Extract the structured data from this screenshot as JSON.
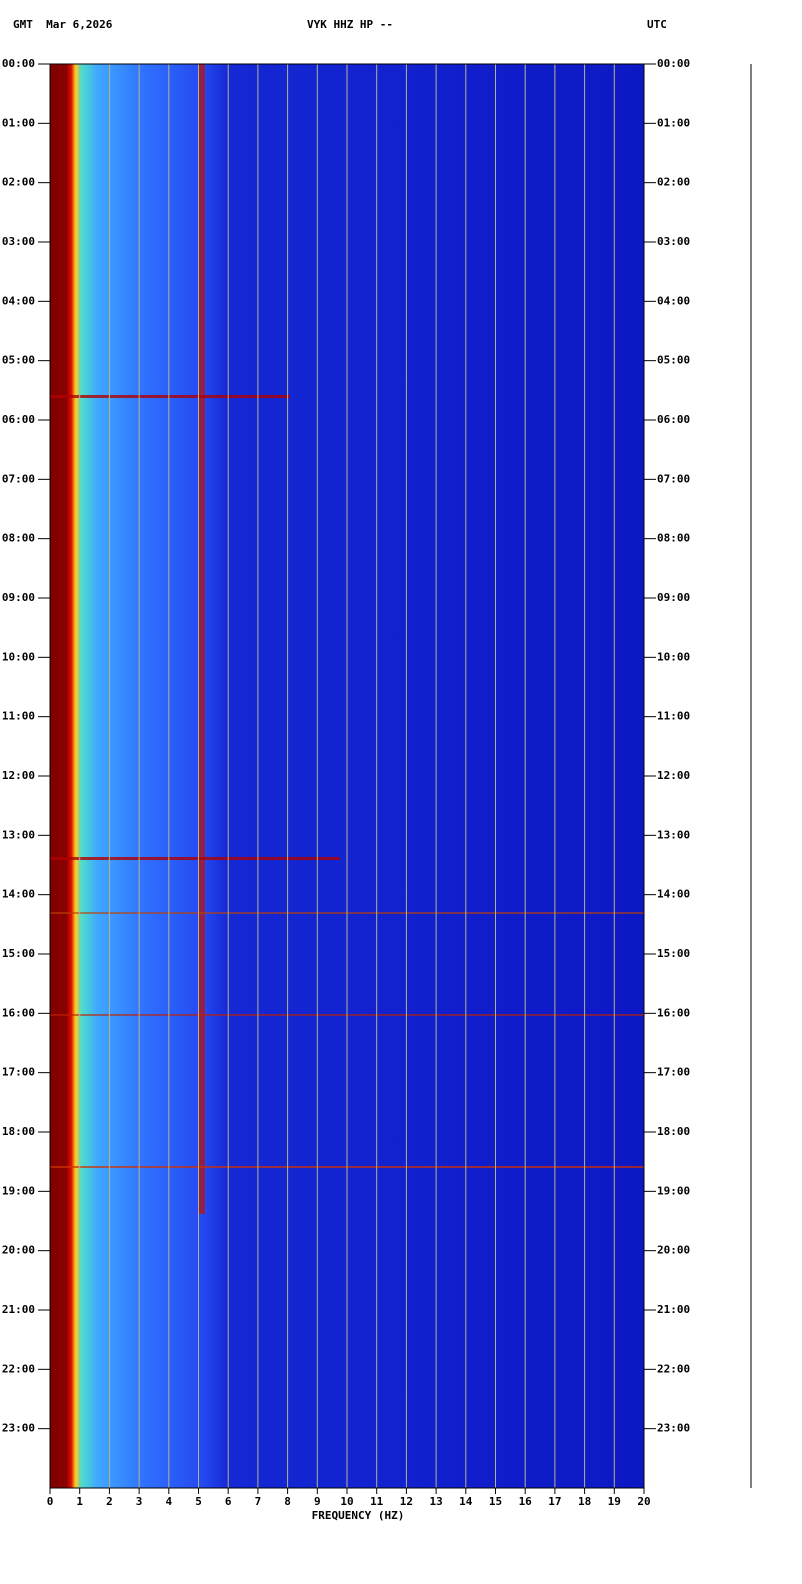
{
  "header": {
    "left": "GMT  Mar 6,2026",
    "center": "VYK HHZ HP --",
    "right": "UTC"
  },
  "chart_data": {
    "type": "spectrogram",
    "xlabel": "FREQUENCY (HZ)",
    "xlim": [
      0,
      20
    ],
    "xticks": [
      0,
      1,
      2,
      3,
      4,
      5,
      6,
      7,
      8,
      9,
      10,
      11,
      12,
      13,
      14,
      15,
      16,
      17,
      18,
      19,
      20
    ],
    "ylim": [
      0,
      24
    ],
    "yticks": [
      {
        "value": 0,
        "label": "00:00"
      },
      {
        "value": 1,
        "label": "01:00"
      },
      {
        "value": 2,
        "label": "02:00"
      },
      {
        "value": 3,
        "label": "03:00"
      },
      {
        "value": 4,
        "label": "04:00"
      },
      {
        "value": 5,
        "label": "05:00"
      },
      {
        "value": 6,
        "label": "06:00"
      },
      {
        "value": 7,
        "label": "07:00"
      },
      {
        "value": 8,
        "label": "08:00"
      },
      {
        "value": 9,
        "label": "09:00"
      },
      {
        "value": 10,
        "label": "10:00"
      },
      {
        "value": 11,
        "label": "11:00"
      },
      {
        "value": 12,
        "label": "12:00"
      },
      {
        "value": 13,
        "label": "13:00"
      },
      {
        "value": 14,
        "label": "14:00"
      },
      {
        "value": 15,
        "label": "15:00"
      },
      {
        "value": 16,
        "label": "16:00"
      },
      {
        "value": 17,
        "label": "17:00"
      },
      {
        "value": 18,
        "label": "18:00"
      },
      {
        "value": 19,
        "label": "19:00"
      },
      {
        "value": 20,
        "label": "20:00"
      },
      {
        "value": 21,
        "label": "21:00"
      },
      {
        "value": 22,
        "label": "22:00"
      },
      {
        "value": 23,
        "label": "23:00"
      }
    ],
    "grid": true,
    "grid_color": "#b4b48c"
  }
}
